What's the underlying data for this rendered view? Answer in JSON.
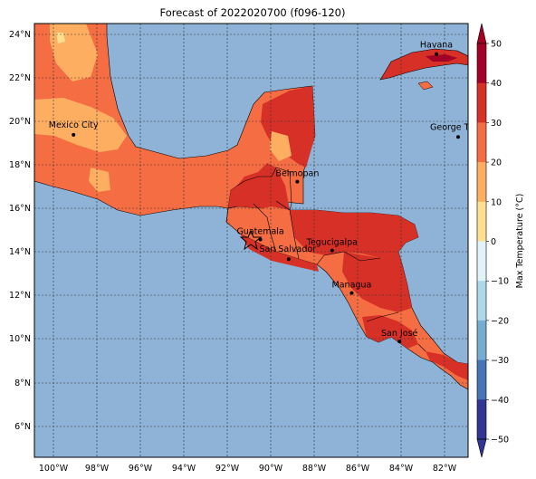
{
  "title": "Forecast of 2022020700 (f096-120)",
  "colors": {
    "ocean": "#8fb3d6",
    "land_warm": "#f46d43",
    "land_hot": "#d73027",
    "land_mild": "#fdae61",
    "land_pale": "#fee090",
    "border": "#000000"
  },
  "lat_ticks": [
    "6°N",
    "8°N",
    "10°N",
    "12°N",
    "14°N",
    "16°N",
    "18°N",
    "20°N",
    "22°N",
    "24°N"
  ],
  "lon_ticks": [
    "100°W",
    "98°W",
    "96°W",
    "94°W",
    "92°W",
    "90°W",
    "88°W",
    "86°W",
    "84°W",
    "82°W"
  ],
  "cities": [
    {
      "name": "Havana",
      "lon": -82.4,
      "lat": 23.1
    },
    {
      "name": "Mexico City",
      "lon": -99.1,
      "lat": 19.4
    },
    {
      "name": "George Tov",
      "lon": -81.4,
      "lat": 19.3
    },
    {
      "name": "Belmopan",
      "lon": -88.8,
      "lat": 17.25
    },
    {
      "name": "Guatemala",
      "lon": -90.5,
      "lat": 14.6
    },
    {
      "name": "Tegucigalpa",
      "lon": -87.2,
      "lat": 14.1
    },
    {
      "name": "San Salvador",
      "lon": -89.2,
      "lat": 13.7
    },
    {
      "name": "Managua",
      "lon": -86.3,
      "lat": 12.15
    },
    {
      "name": "San José",
      "lon": -84.1,
      "lat": 9.93
    }
  ],
  "colorbar": {
    "label": "Max Temperature (°C)",
    "ticks": [
      "50",
      "40",
      "30",
      "20",
      "10",
      "0",
      "−10",
      "−20",
      "−30",
      "−40",
      "−50"
    ],
    "colors": [
      "#a50026",
      "#d73027",
      "#f46d43",
      "#fdae61",
      "#fee090",
      "#ffffbf",
      "#e0f3f8",
      "#abd9e9",
      "#74add1",
      "#4575b4",
      "#313695"
    ]
  }
}
